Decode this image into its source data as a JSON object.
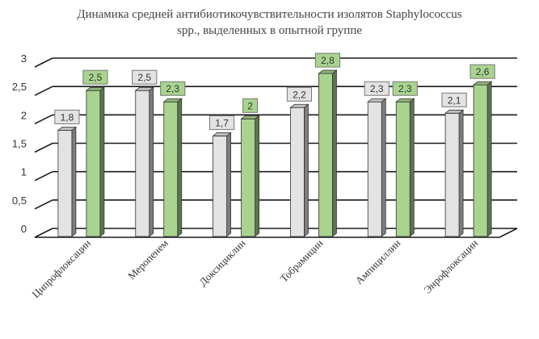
{
  "chart_data": {
    "type": "bar",
    "title_line1": "Динамика средней антибиотикочувствительности изолятов Staphylococcus",
    "title_line2": "spp., выделенных в опытной группе",
    "categories": [
      "Ципрофлоксацин",
      "Меропенем",
      "Доксициклин",
      "Тобрамицин",
      "Ампициллин",
      "Энрофлоксацин"
    ],
    "series": [
      {
        "values": [
          1.8,
          2.5,
          1.7,
          2.2,
          2.3,
          2.1
        ],
        "value_labels": [
          "1,8",
          "2,5",
          "1,7",
          "2,2",
          "2,3",
          "2,1"
        ],
        "color": "#e3e3e3"
      },
      {
        "values": [
          2.5,
          2.3,
          2.0,
          2.8,
          2.3,
          2.6
        ],
        "value_labels": [
          "2,5",
          "2,3",
          "2",
          "2,8",
          "2,3",
          "2,6"
        ],
        "color": "#a9d48f"
      }
    ],
    "yticks": [
      0,
      0.5,
      1,
      1.5,
      2,
      2.5,
      3
    ],
    "ytick_labels": [
      "0",
      "0,5",
      "1",
      "1,5",
      "2",
      "2,5",
      "3"
    ],
    "ylim": [
      0,
      3
    ],
    "grid": true,
    "legend": "none",
    "style": "3d-column"
  }
}
